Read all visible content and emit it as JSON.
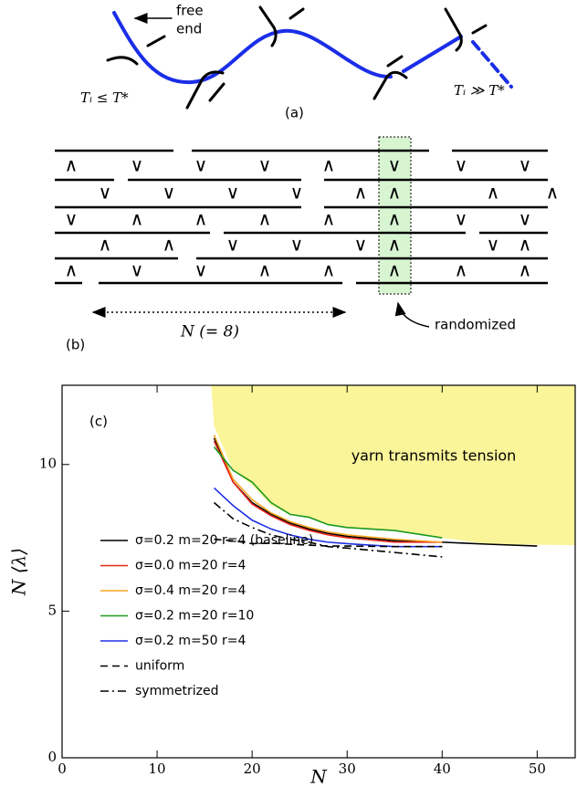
{
  "diagram_a": {
    "free_end": [
      "free",
      "end"
    ],
    "left_label": "Tᵢ ≤ T*",
    "right_label": "Tᵢ ≫ T*",
    "panel_label": "(a)"
  },
  "diagram_b": {
    "panel_label": "(b)",
    "size_label": "N (= 8)",
    "highlight_label": "randomized",
    "rows": [
      [
        "∧",
        "∨",
        "∨",
        "∨",
        "∧",
        "∨",
        "∨",
        "∨"
      ],
      [
        "∨",
        "∨",
        "∨",
        "∨",
        "∧",
        "∧",
        "∧",
        "∧"
      ],
      [
        "∨",
        "∧",
        "∧",
        "∧",
        "∧",
        "∧",
        "∨",
        "∨"
      ],
      [
        "∧",
        "∧",
        "∨",
        "∨",
        "∨",
        "∧",
        "∨",
        "∧"
      ],
      [
        "∧",
        "∨",
        "∨",
        "∧",
        "∧",
        "∧",
        "∧",
        "∧"
      ]
    ]
  },
  "chart_data": {
    "type": "line",
    "panel_label": "(c)",
    "x_label": "N",
    "y_label": "N ⟨λ⟩",
    "xlim": [
      0,
      54
    ],
    "ylim": [
      0,
      12.7
    ],
    "xticks": [
      0,
      10,
      20,
      30,
      40,
      50
    ],
    "yticks": [
      0,
      5,
      10
    ],
    "legend": "lower left",
    "shaded_region": {
      "label": "yarn transmits tension",
      "color": "#fbf59a",
      "x": [
        15.7,
        16,
        18,
        20,
        22,
        24,
        26,
        28,
        30,
        35,
        40,
        45,
        54
      ],
      "y": [
        12.7,
        11.3,
        9.8,
        9.3,
        8.6,
        8.3,
        8.2,
        7.95,
        7.85,
        7.75,
        7.5,
        7.28,
        7.25
      ]
    },
    "series": [
      {
        "name": "σ=0.2 m=20 r=4 (baseline)",
        "color": "#000000",
        "dash": "solid",
        "x": [
          16,
          18,
          20,
          22,
          24,
          26,
          28,
          30,
          35,
          40,
          45,
          50
        ],
        "values": [
          10.9,
          9.4,
          8.7,
          8.3,
          8.0,
          7.8,
          7.65,
          7.55,
          7.4,
          7.35,
          7.28,
          7.22
        ]
      },
      {
        "name": "σ=0.0 m=20 r=4",
        "color": "#e8261c",
        "dash": "solid",
        "x": [
          16,
          18,
          20,
          22,
          24,
          26,
          28,
          30,
          35,
          40
        ],
        "values": [
          10.8,
          9.4,
          8.65,
          8.25,
          7.95,
          7.75,
          7.6,
          7.5,
          7.35,
          7.35
        ]
      },
      {
        "name": "σ=0.4 m=20 r=4",
        "color": "#f5a623",
        "dash": "solid",
        "x": [
          16,
          18,
          20,
          22,
          24,
          26,
          28,
          30,
          35,
          40
        ],
        "values": [
          11.0,
          9.5,
          8.8,
          8.35,
          8.05,
          7.85,
          7.7,
          7.6,
          7.45,
          7.35
        ]
      },
      {
        "name": "σ=0.2 m=20 r=10",
        "color": "#1e9a1e",
        "dash": "solid",
        "x": [
          16,
          18,
          20,
          22,
          24,
          26,
          28,
          30,
          35,
          40
        ],
        "values": [
          10.6,
          9.8,
          9.4,
          8.7,
          8.3,
          8.2,
          7.95,
          7.85,
          7.75,
          7.5
        ]
      },
      {
        "name": "σ=0.2 m=50 r=4",
        "color": "#2030e0",
        "dash": "solid",
        "x": [
          16,
          18,
          20,
          22,
          24,
          26,
          28,
          30,
          35,
          40
        ],
        "values": [
          9.2,
          8.6,
          8.1,
          7.8,
          7.6,
          7.45,
          7.35,
          7.3,
          7.2,
          7.2
        ]
      },
      {
        "name": "uniform",
        "color": "#000000",
        "dash": "dashed",
        "x": [
          16,
          18,
          20,
          22,
          24,
          26,
          28,
          30,
          35,
          40
        ],
        "values": [
          7.45,
          7.4,
          7.3,
          7.32,
          7.28,
          7.25,
          7.22,
          7.22,
          7.2,
          7.2
        ]
      },
      {
        "name": "symmetrized",
        "color": "#000000",
        "dash": "dashdot",
        "x": [
          16,
          18,
          20,
          22,
          24,
          26,
          28,
          30,
          35,
          40
        ],
        "values": [
          8.7,
          8.15,
          7.85,
          7.6,
          7.45,
          7.35,
          7.2,
          7.15,
          7.0,
          6.85
        ]
      }
    ]
  }
}
